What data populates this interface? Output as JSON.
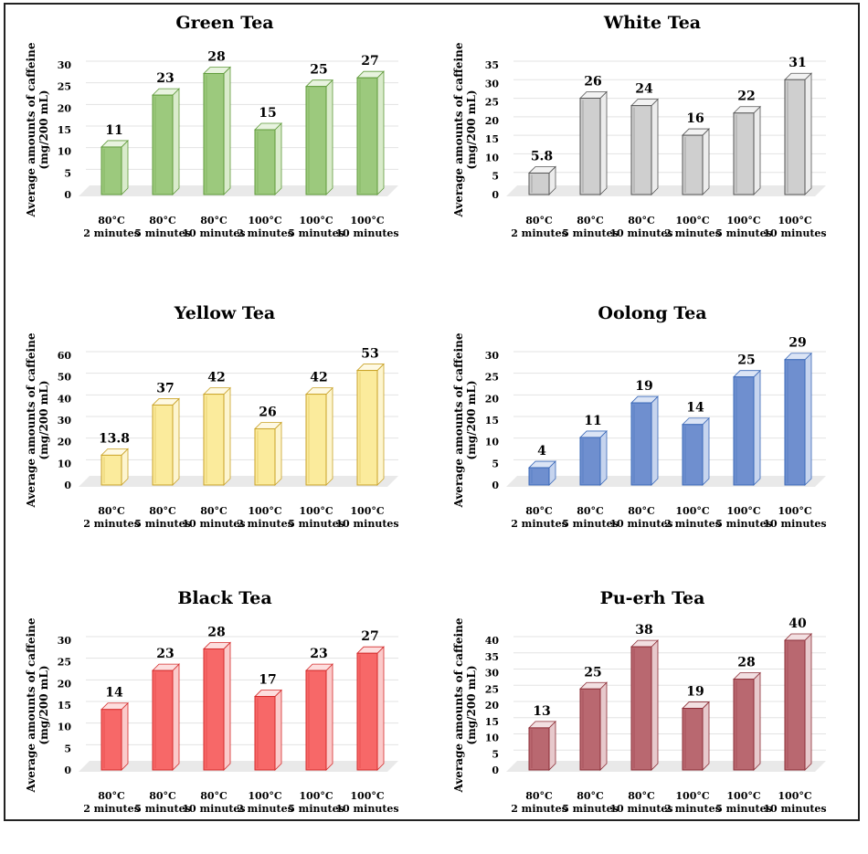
{
  "figure": {
    "ylabel_line1": "Average amounts of caffeine",
    "ylabel_line2": "(mg/200 mL)"
  },
  "chart_data": [
    {
      "type": "bar",
      "title": "Green Tea",
      "ylabel": "Average amounts of caffeine (mg/200 mL)",
      "categories": [
        [
          "80°C",
          "2 minutes"
        ],
        [
          "80°C",
          "5 minutes"
        ],
        [
          "80°C",
          "10 minutes"
        ],
        [
          "100°C",
          "2 minutes"
        ],
        [
          "100°C",
          "5 minutes"
        ],
        [
          "100°C",
          "10 minutes"
        ]
      ],
      "values": [
        11,
        23,
        28,
        15,
        25,
        27
      ],
      "value_labels": [
        "11",
        "23",
        "28",
        "15",
        "25",
        "27"
      ],
      "ylim": [
        0,
        30
      ],
      "yticks": [
        0,
        5,
        10,
        15,
        20,
        25,
        30
      ],
      "grid": true,
      "colors": {
        "fill": "#9cc97d",
        "edge": "#5f9a3a",
        "side": "#d9ebcb",
        "top": "#e8f3df"
      }
    },
    {
      "type": "bar",
      "title": "White Tea",
      "ylabel": "Average amounts of caffeine (mg/200 mL)",
      "categories": [
        [
          "80°C",
          "2 minutes"
        ],
        [
          "80°C",
          "5 minutes"
        ],
        [
          "80°C",
          "10 minutes"
        ],
        [
          "100°C",
          "2 minutes"
        ],
        [
          "100°C",
          "5 minutes"
        ],
        [
          "100°C",
          "10 minutes"
        ]
      ],
      "values": [
        5.8,
        26,
        24,
        16,
        22,
        31
      ],
      "value_labels": [
        "5.8",
        "26",
        "24",
        "16",
        "22",
        "31"
      ],
      "ylim": [
        0,
        35
      ],
      "yticks": [
        0,
        5,
        10,
        15,
        20,
        25,
        30,
        35
      ],
      "grid": true,
      "colors": {
        "fill": "#cfcfcf",
        "edge": "#555555",
        "side": "#ececec",
        "top": "#f2f2f2"
      }
    },
    {
      "type": "bar",
      "title": "Yellow Tea",
      "ylabel": "Average amounts of caffeine (mg/200 mL)",
      "categories": [
        [
          "80°C",
          "2 minutes"
        ],
        [
          "80°C",
          "5 minutes"
        ],
        [
          "80°C",
          "10 minutes"
        ],
        [
          "100°C",
          "2 minutes"
        ],
        [
          "100°C",
          "5 minutes"
        ],
        [
          "100°C",
          "10 minutes"
        ]
      ],
      "values": [
        13.8,
        37,
        42,
        26,
        42,
        53
      ],
      "value_labels": [
        "13.8",
        "37",
        "42",
        "26",
        "42",
        "53"
      ],
      "ylim": [
        0,
        60
      ],
      "yticks": [
        0,
        10,
        20,
        30,
        40,
        50,
        60
      ],
      "grid": true,
      "colors": {
        "fill": "#fbeb9c",
        "edge": "#c9a227",
        "side": "#fdf5cf",
        "top": "#fef9e3"
      }
    },
    {
      "type": "bar",
      "title": "Oolong Tea",
      "ylabel": "Average amounts of caffeine (mg/200 mL)",
      "categories": [
        [
          "80°C",
          "2 minutes"
        ],
        [
          "80°C",
          "5 minutes"
        ],
        [
          "80°C",
          "10 minutes"
        ],
        [
          "100°C",
          "2 minutes"
        ],
        [
          "100°C",
          "5 minutes"
        ],
        [
          "100°C",
          "10 minutes"
        ]
      ],
      "values": [
        4,
        11,
        19,
        14,
        25,
        29
      ],
      "value_labels": [
        "4",
        "11",
        "19",
        "14",
        "25",
        "29"
      ],
      "ylim": [
        0,
        30
      ],
      "yticks": [
        0,
        5,
        10,
        15,
        20,
        25,
        30
      ],
      "grid": true,
      "colors": {
        "fill": "#6f8fcf",
        "edge": "#3a68b8",
        "side": "#c6d4ee",
        "top": "#dbe4f5"
      }
    },
    {
      "type": "bar",
      "title": "Black Tea",
      "ylabel": "Average amounts of caffeine (mg/200 mL)",
      "categories": [
        [
          "80°C",
          "2 minutes"
        ],
        [
          "80°C",
          "5 minutes"
        ],
        [
          "80°C",
          "10 minutes"
        ],
        [
          "100°C",
          "2 minutes"
        ],
        [
          "100°C",
          "5 minutes"
        ],
        [
          "100°C",
          "10 minutes"
        ]
      ],
      "values": [
        14,
        23,
        28,
        17,
        23,
        27
      ],
      "value_labels": [
        "14",
        "23",
        "28",
        "17",
        "23",
        "27"
      ],
      "ylim": [
        0,
        30
      ],
      "yticks": [
        0,
        5,
        10,
        15,
        20,
        25,
        30
      ],
      "grid": true,
      "colors": {
        "fill": "#f76868",
        "edge": "#d42a2a",
        "side": "#fbcaca",
        "top": "#fddede"
      }
    },
    {
      "type": "bar",
      "title": "Pu-erh Tea",
      "ylabel": "Average amounts of caffeine (mg/200 mL)",
      "categories": [
        [
          "80°C",
          "2 minutes"
        ],
        [
          "80°C",
          "5 minutes"
        ],
        [
          "80°C",
          "10 minutes"
        ],
        [
          "100°C",
          "2 minutes"
        ],
        [
          "100°C",
          "5 minutes"
        ],
        [
          "100°C",
          "10 minutes"
        ]
      ],
      "values": [
        13,
        25,
        38,
        19,
        28,
        40
      ],
      "value_labels": [
        "13",
        "25",
        "38",
        "19",
        "28",
        "40"
      ],
      "ylim": [
        0,
        40
      ],
      "yticks": [
        0,
        5,
        10,
        15,
        20,
        25,
        30,
        35,
        40
      ],
      "grid": true,
      "colors": {
        "fill": "#b96870",
        "edge": "#8c2d36",
        "side": "#e7c9cc",
        "top": "#f2dfe1"
      }
    }
  ]
}
